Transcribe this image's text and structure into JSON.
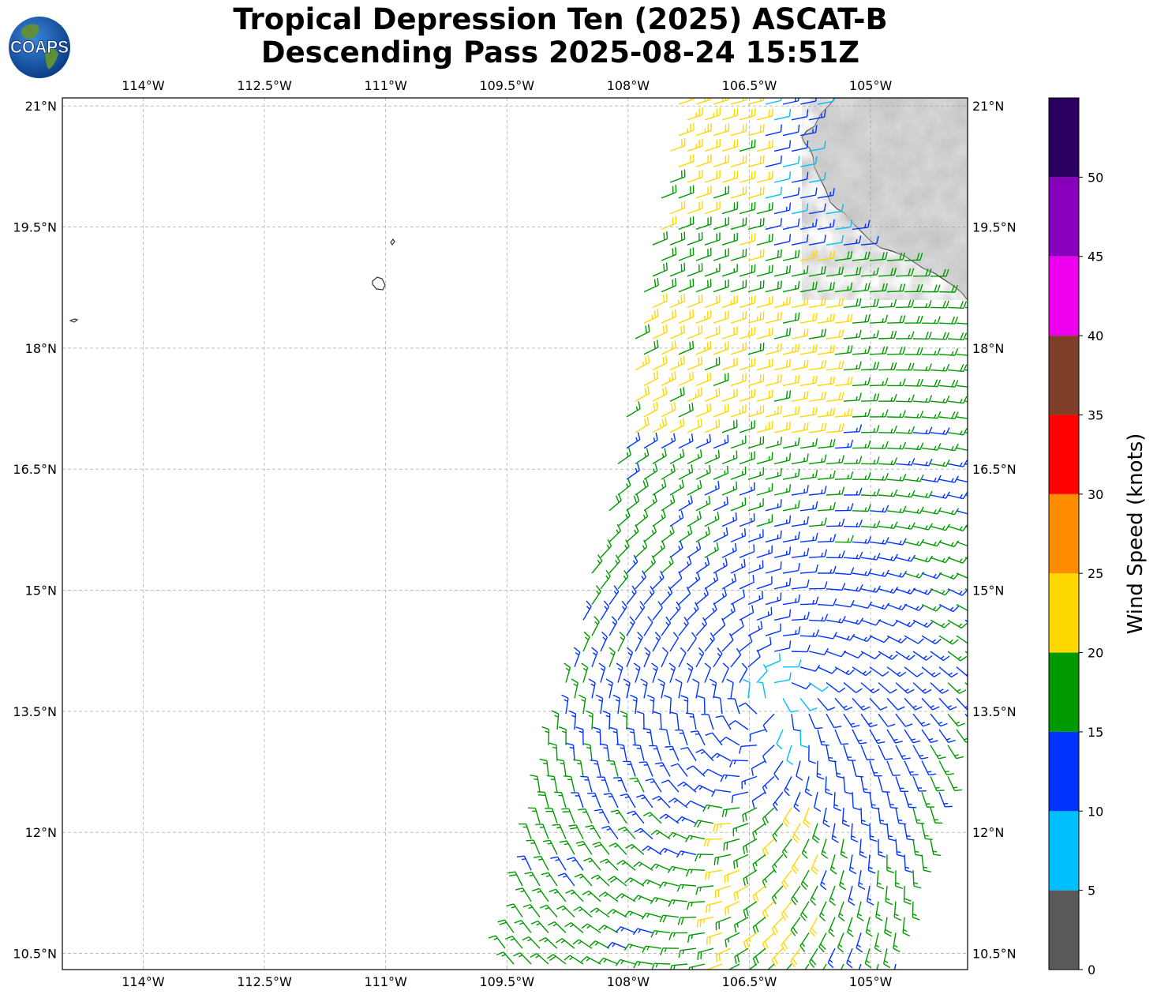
{
  "header": {
    "title_line1": "Tropical Depression Ten (2025) ASCAT-B",
    "title_line2": "Descending Pass 2025-08-24 15:51Z",
    "logo_text": "COAPS"
  },
  "map": {
    "lon_range": [
      -115.0,
      -103.8
    ],
    "lat_range": [
      10.3,
      21.1
    ],
    "lon_ticks": [
      "114°W",
      "112.5°W",
      "111°W",
      "109.5°W",
      "108°W",
      "106.5°W",
      "105°W"
    ],
    "lon_tick_values": [
      -114.0,
      -112.5,
      -111.0,
      -109.5,
      -108.0,
      -106.5,
      -105.0
    ],
    "lat_ticks": [
      "10.5°N",
      "12°N",
      "13.5°N",
      "15°N",
      "16.5°N",
      "18°N",
      "19.5°N",
      "21°N"
    ],
    "lat_tick_values": [
      10.5,
      12.0,
      13.5,
      15.0,
      16.5,
      18.0,
      19.5,
      21.0
    ],
    "gridlines": true,
    "land_shading": "grayscale terrain",
    "barb_field": "ASCAT-B wind barbs over a broad cyclonic circulation near 13.5°N 106.5°W"
  },
  "colorbar": {
    "label": "Wind Speed (knots)",
    "tick_labels": [
      "0",
      "5",
      "10",
      "15",
      "20",
      "25",
      "30",
      "35",
      "40",
      "45",
      "50"
    ],
    "bins": [
      {
        "min": 0,
        "max": 5,
        "color": "#595959"
      },
      {
        "min": 5,
        "max": 10,
        "color": "#00bfff"
      },
      {
        "min": 10,
        "max": 15,
        "color": "#0033ff"
      },
      {
        "min": 15,
        "max": 20,
        "color": "#009900"
      },
      {
        "min": 20,
        "max": 25,
        "color": "#ffd700"
      },
      {
        "min": 25,
        "max": 30,
        "color": "#ff8c00"
      },
      {
        "min": 30,
        "max": 35,
        "color": "#ff0000"
      },
      {
        "min": 35,
        "max": 40,
        "color": "#7f3f28"
      },
      {
        "min": 40,
        "max": 45,
        "color": "#ee00ee"
      },
      {
        "min": 45,
        "max": 50,
        "color": "#8800bb"
      },
      {
        "min": 50,
        "max": 55,
        "color": "#2a0060"
      }
    ]
  }
}
